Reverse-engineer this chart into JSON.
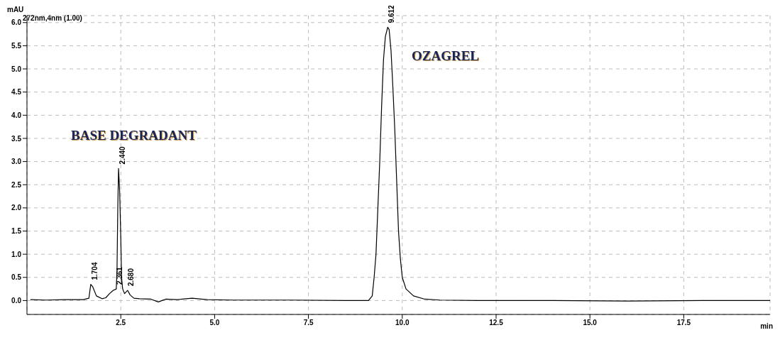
{
  "chart_data": {
    "type": "line",
    "ylabel": "mAU",
    "xlabel": "min",
    "subtitle": "272nm,4nm (1.00)",
    "x": [
      0.1,
      0.5,
      1.0,
      1.5,
      1.65,
      1.7,
      1.75,
      1.85,
      2.0,
      2.1,
      2.2,
      2.3,
      2.38,
      2.4,
      2.42,
      2.44,
      2.47,
      2.5,
      2.52,
      2.55,
      2.6,
      2.68,
      2.75,
      2.85,
      3.0,
      3.3,
      3.5,
      3.6,
      3.7,
      4.0,
      4.4,
      4.8,
      5.5,
      7.0,
      8.5,
      9.1,
      9.2,
      9.25,
      9.3,
      9.35,
      9.4,
      9.45,
      9.5,
      9.55,
      9.612,
      9.65,
      9.7,
      9.75,
      9.8,
      9.85,
      9.9,
      9.95,
      10.0,
      10.1,
      10.3,
      10.6,
      11.0,
      12.0,
      14.0,
      16.0,
      18.0,
      19.8
    ],
    "series": [
      {
        "color": "#000000",
        "values": [
          0.02,
          0.01,
          0.02,
          0.02,
          0.05,
          0.35,
          0.3,
          0.1,
          0.04,
          0.06,
          0.15,
          0.22,
          0.25,
          0.7,
          2.0,
          2.85,
          2.35,
          1.35,
          0.5,
          0.25,
          0.15,
          0.22,
          0.12,
          0.05,
          0.04,
          0.03,
          -0.03,
          0.0,
          0.03,
          0.02,
          0.05,
          0.02,
          0.01,
          0.01,
          0.0,
          0.0,
          0.1,
          0.5,
          1.0,
          2.0,
          3.0,
          4.2,
          5.2,
          5.7,
          5.9,
          5.85,
          5.4,
          4.6,
          3.7,
          2.6,
          1.5,
          0.9,
          0.5,
          0.25,
          0.1,
          0.03,
          0.01,
          0.0,
          0.0,
          -0.01,
          0.0,
          0.0
        ]
      }
    ],
    "xlim": [
      0,
      19.8
    ],
    "xticks": [
      2.5,
      {
        "value": 5,
        "label": "5.0"
      },
      7.5,
      {
        "value": 10,
        "label": "10.0"
      },
      12.5,
      {
        "value": 15,
        "label": "15.0"
      },
      17.5
    ],
    "ylim": [
      -0.3,
      6.15
    ],
    "yticks": [
      {
        "value": 0,
        "label": "0.0"
      },
      0.5,
      {
        "value": 1,
        "label": "1.0"
      },
      1.5,
      {
        "value": 2,
        "label": "2.0"
      },
      2.5,
      {
        "value": 3,
        "label": "3.0"
      },
      3.5,
      {
        "value": 4,
        "label": "4.0"
      },
      4.5,
      {
        "value": 5,
        "label": "5.0"
      },
      5.5,
      {
        "value": 6,
        "label": "6.0"
      }
    ],
    "grid": true,
    "marker": "none",
    "line_style": "solid",
    "annotations": [
      "BASE DEGRADANT",
      "OZAGREL",
      {
        "text": "1.704",
        "x": 1.7,
        "y": 0.35
      },
      {
        "text": "2.361",
        "x": 2.38,
        "y": 0.25
      },
      {
        "text": "2.440",
        "x": 2.44,
        "y": 2.85
      },
      {
        "text": "2.680",
        "x": 2.68,
        "y": 0.22
      },
      {
        "text": "9.612",
        "x": 9.612,
        "y": 5.9
      }
    ]
  }
}
